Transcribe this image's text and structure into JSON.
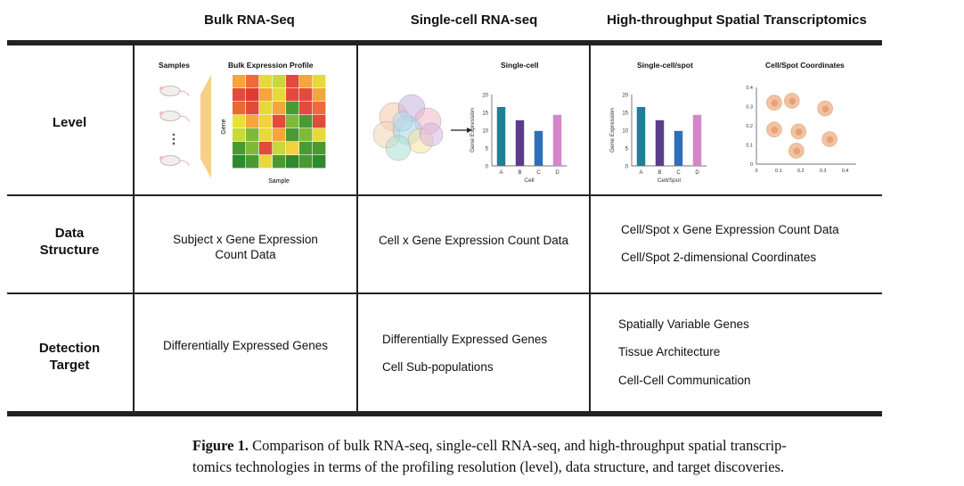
{
  "columns": {
    "bulk": "Bulk RNA-Seq",
    "single": "Single-cell RNA-seq",
    "spatial": "High-throughput Spatial Transcriptomics"
  },
  "rows": {
    "level": "Level",
    "data_structure_line1": "Data",
    "data_structure_line2": "Structure",
    "detection_line1": "Detection",
    "detection_line2": "Target"
  },
  "level": {
    "bulk": {
      "samples_label": "Samples",
      "profile_label": "Bulk Expression Profile",
      "gene_axis": "Gene",
      "sample_axis": "Sample",
      "heatmap_colors": [
        [
          "#f4a53b",
          "#ee6a3a",
          "#e8d93a",
          "#c7d93c",
          "#e24a3b",
          "#f4a53b",
          "#e8d93a"
        ],
        [
          "#e24a3b",
          "#e03b30",
          "#f4a53b",
          "#e8d93a",
          "#e24a3b",
          "#e24a3b",
          "#f4a53b"
        ],
        [
          "#e86a35",
          "#e24a3b",
          "#e8d93a",
          "#f4a53b",
          "#4a9a34",
          "#e24a3b",
          "#ee6a3a"
        ],
        [
          "#e6e23a",
          "#f4a53b",
          "#f2d23c",
          "#e24a3b",
          "#7fb93a",
          "#4a9a34",
          "#e24a3b"
        ],
        [
          "#c8d93a",
          "#7fb93a",
          "#e8d93a",
          "#f4a53b",
          "#4a9a34",
          "#7fb93a",
          "#e8d93a"
        ],
        [
          "#4a9a34",
          "#7fb93a",
          "#e24a3b",
          "#c8d93a",
          "#f2d23c",
          "#4a9a34",
          "#4a9a34"
        ],
        [
          "#2f8a2f",
          "#4a9a34",
          "#e8d93a",
          "#4a9a34",
          "#2f8a2f",
          "#4a9a34",
          "#2f8a2f"
        ]
      ]
    },
    "single": {
      "title": "Single-cell",
      "y_label": "Gene Expression",
      "x_label": "Cell"
    },
    "spatial": {
      "title_bar": "Single-cell/spot",
      "title_scatter": "Cell/Spot Coordinates",
      "y_label": "Gene Expression",
      "x_label": "Cell/Spot"
    }
  },
  "chart_data": [
    {
      "type": "bar",
      "title": "Single-cell",
      "xlabel": "Cell",
      "ylabel": "Gene Expression",
      "categories": [
        "A",
        "B",
        "C",
        "D"
      ],
      "values": [
        16.5,
        12.8,
        9.8,
        14.3
      ],
      "colors": [
        "#1e7f95",
        "#5a3d8a",
        "#2f6fb8",
        "#d487c8"
      ],
      "ylim": [
        0,
        20
      ],
      "yticks": [
        "0",
        "5",
        "10",
        "15",
        "20"
      ]
    },
    {
      "type": "bar",
      "title": "Single-cell/spot",
      "xlabel": "Cell/Spot",
      "ylabel": "Gene Expression",
      "categories": [
        "A",
        "B",
        "C",
        "D"
      ],
      "values": [
        16.5,
        12.8,
        9.8,
        14.3
      ],
      "colors": [
        "#1e7f95",
        "#5a3d8a",
        "#2f6fb8",
        "#d487c8"
      ],
      "ylim": [
        0,
        20
      ],
      "yticks": [
        "0",
        "5",
        "10",
        "15",
        "20"
      ]
    },
    {
      "type": "scatter",
      "title": "Cell/Spot Coordinates",
      "points": [
        {
          "x": 0.08,
          "y": 0.32
        },
        {
          "x": 0.16,
          "y": 0.33
        },
        {
          "x": 0.31,
          "y": 0.29
        },
        {
          "x": 0.08,
          "y": 0.18
        },
        {
          "x": 0.19,
          "y": 0.17
        },
        {
          "x": 0.18,
          "y": 0.07
        },
        {
          "x": 0.33,
          "y": 0.13
        }
      ],
      "xlim": [
        0,
        0.45
      ],
      "ylim": [
        0,
        0.4
      ],
      "xticks": [
        "0",
        "0.1",
        "0.2",
        "0.3",
        "0.4"
      ],
      "yticks": [
        "0",
        "0.1",
        "0.2",
        "0.3",
        "0.4"
      ]
    }
  ],
  "data_structure": {
    "bulk_line1": "Subject x Gene Expression",
    "bulk_line2": "Count Data",
    "single": "Cell x Gene Expression Count Data",
    "spatial_line1": "Cell/Spot x Gene Expression Count Data",
    "spatial_line2": "Cell/Spot 2-dimensional Coordinates"
  },
  "detection": {
    "bulk": "Differentially Expressed Genes",
    "single_line1": "Differentially Expressed Genes",
    "single_line2": "Cell Sub-populations",
    "spatial_line1": "Spatially Variable Genes",
    "spatial_line2": "Tissue Architecture",
    "spatial_line3": "Cell-Cell Communication"
  },
  "caption": {
    "label": "Figure 1.",
    "text_line1": "Comparison of bulk RNA-seq, single-cell RNA-seq, and high-throughput spatial transcrip-",
    "text_line2": "tomics technologies in terms of the profiling resolution (level), data structure, and target discoveries."
  },
  "colors": {
    "rule": "#222222",
    "cell_fill": "#f1c3a0",
    "cell_nucleus": "#e6a07a"
  }
}
